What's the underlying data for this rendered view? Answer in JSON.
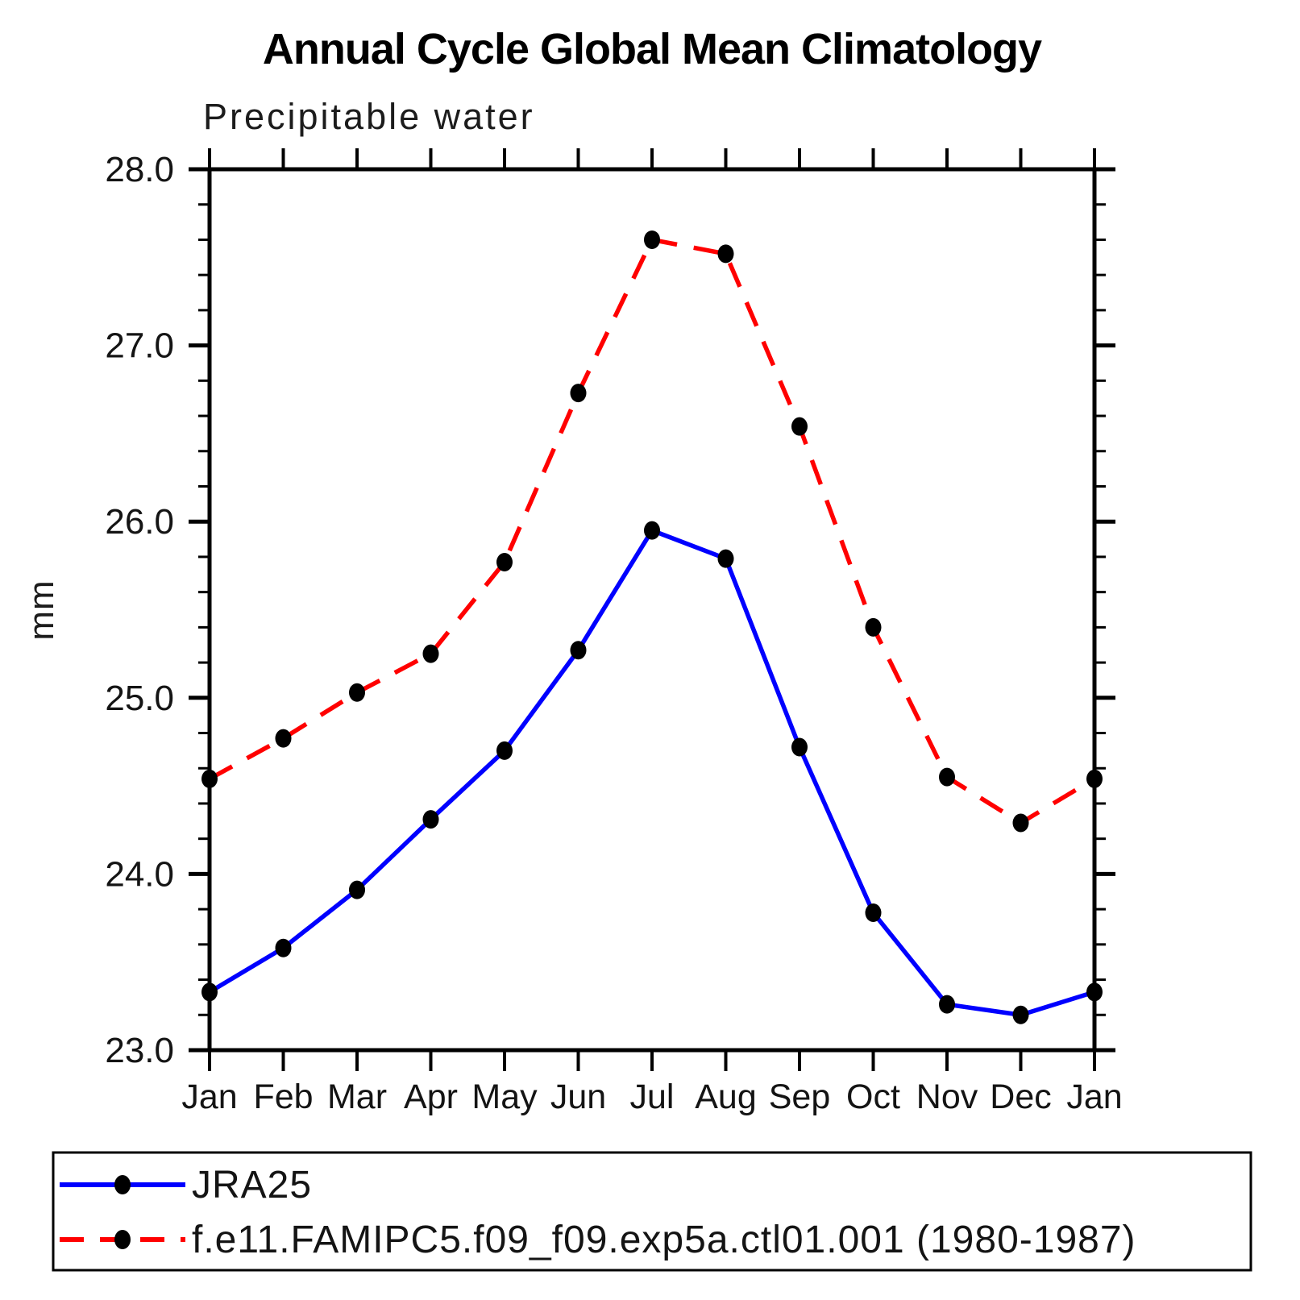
{
  "title": "Annual Cycle Global Mean Climatology",
  "subtitle": "Precipitable water",
  "y_axis_unit": "mm",
  "chart_data": {
    "type": "line",
    "title": "Annual Cycle Global Mean Climatology",
    "subtitle": "Precipitable water",
    "ylabel": "mm",
    "xlabel": "",
    "categories": [
      "Jan",
      "Feb",
      "Mar",
      "Apr",
      "May",
      "Jun",
      "Jul",
      "Aug",
      "Sep",
      "Oct",
      "Nov",
      "Dec",
      "Jan"
    ],
    "ylim": [
      23.0,
      28.0
    ],
    "ytick_major": [
      23.0,
      24.0,
      25.0,
      26.0,
      27.0,
      28.0
    ],
    "ytick_minor_step": 0.2,
    "ytick_label_decimals": 1,
    "grid": false,
    "legend_position": "bottom-box",
    "series": [
      {
        "name": "JRA25",
        "color": "#0000ff",
        "line_style": "solid",
        "marker": "filled-black-circle",
        "values": [
          23.33,
          23.58,
          23.91,
          24.31,
          24.7,
          25.27,
          25.95,
          25.79,
          24.72,
          23.78,
          23.26,
          23.2,
          23.33
        ]
      },
      {
        "name": "f.e11.FAMIPC5.f09_f09.exp5a.ctl01.001 (1980-1987)",
        "color": "#ff0000",
        "line_style": "dashed",
        "marker": "filled-black-circle",
        "values": [
          24.54,
          24.77,
          25.03,
          25.25,
          25.77,
          26.73,
          27.6,
          27.52,
          26.54,
          25.4,
          24.55,
          24.29,
          24.54
        ]
      }
    ]
  },
  "colors": {
    "background": "#ffffff",
    "axis": "#000000",
    "marker": "#000000",
    "text": "#141414",
    "jra25_line": "#0000ff",
    "model_line": "#ff0000"
  }
}
